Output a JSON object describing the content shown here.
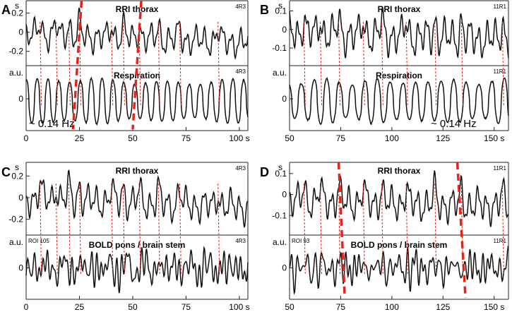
{
  "colors": {
    "trace": "#111111",
    "marker": "#e8231a",
    "axis": "#222222"
  },
  "chart_data": [
    {
      "panel": "A",
      "type": "line",
      "tag": "4R3",
      "x": {
        "min": 0,
        "max": 104,
        "ticks": [
          0,
          25,
          50,
          75,
          100
        ],
        "unit": "s"
      },
      "top": {
        "title": "RRI thorax",
        "ylabel": "s",
        "ylim": [
          -0.32,
          0.3
        ],
        "yticks": [
          0.2,
          0,
          -0.2
        ],
        "tag": "4R3"
      },
      "bottom": {
        "title": "Respiration",
        "ylabel": "a.u.",
        "ylim": [
          -1.3,
          1.3
        ],
        "yticks": [
          0
        ],
        "tag": "4R3",
        "roi": ""
      },
      "freq_label": "~ 0.14 Hz",
      "markers": [
        6.5,
        14,
        20,
        25,
        40,
        45.5,
        53,
        62,
        72,
        90
      ],
      "thick_markers": [
        {
          "x_top": 26,
          "x_bottom": 22
        },
        {
          "x_top": 54,
          "x_bottom": 50
        }
      ]
    },
    {
      "panel": "B",
      "type": "line",
      "tag": "11R1",
      "x": {
        "min": 50,
        "max": 157,
        "ticks": [
          50,
          75,
          100,
          125,
          150
        ],
        "unit": "s"
      },
      "top": {
        "title": "RRI thorax",
        "ylabel": "s",
        "ylim": [
          -0.18,
          0.14
        ],
        "yticks": [
          0.1,
          0,
          -0.1
        ],
        "tag": "11R1"
      },
      "bottom": {
        "title": "Respiration",
        "ylabel": "a.u.",
        "ylim": [
          -1.3,
          1.3
        ],
        "yticks": [
          0
        ],
        "tag": "11R1",
        "roi": ""
      },
      "freq_label": "~ 0.14 Hz",
      "markers": [
        57,
        65,
        74,
        86,
        95,
        107,
        121,
        134,
        154
      ],
      "thick_markers": []
    },
    {
      "panel": "C",
      "type": "line",
      "tag": "4R3",
      "x": {
        "min": 0,
        "max": 104,
        "ticks": [
          0,
          25,
          50,
          75,
          100
        ],
        "unit": "s"
      },
      "top": {
        "title": "RRI thorax",
        "ylabel": "s",
        "ylim": [
          -0.32,
          0.3
        ],
        "yticks": [
          0.2,
          0,
          -0.2
        ],
        "tag": "4R3"
      },
      "bottom": {
        "title": "BOLD pons / brain stem",
        "ylabel": "a.u.",
        "ylim": [
          -1.3,
          1.3
        ],
        "yticks": [
          0
        ],
        "tag": "4R3",
        "roi": "ROI 105"
      },
      "freq_label": "",
      "markers": [
        6.5,
        14,
        20,
        25,
        40,
        45.5,
        53,
        62,
        72,
        90
      ],
      "thick_markers": []
    },
    {
      "panel": "D",
      "type": "line",
      "tag": "11R1",
      "x": {
        "min": 50,
        "max": 157,
        "ticks": [
          50,
          75,
          100,
          125,
          150
        ],
        "unit": "s"
      },
      "top": {
        "title": "RRI thorax",
        "ylabel": "s",
        "ylim": [
          -0.18,
          0.14
        ],
        "yticks": [
          0.1,
          0,
          -0.1
        ],
        "tag": "11R1"
      },
      "bottom": {
        "title": "BOLD pons / brain stem",
        "ylabel": "a.u.",
        "ylim": [
          -1.3,
          1.3
        ],
        "yticks": [
          0
        ],
        "tag": "11R1",
        "roi": "ROI 93"
      },
      "freq_label": "",
      "markers": [
        57,
        65,
        74,
        86,
        95,
        107,
        121,
        134,
        154
      ],
      "thick_markers": [
        {
          "x_top": 74,
          "x_bottom": 77
        },
        {
          "x_top": 132,
          "x_bottom": 136
        }
      ]
    }
  ]
}
